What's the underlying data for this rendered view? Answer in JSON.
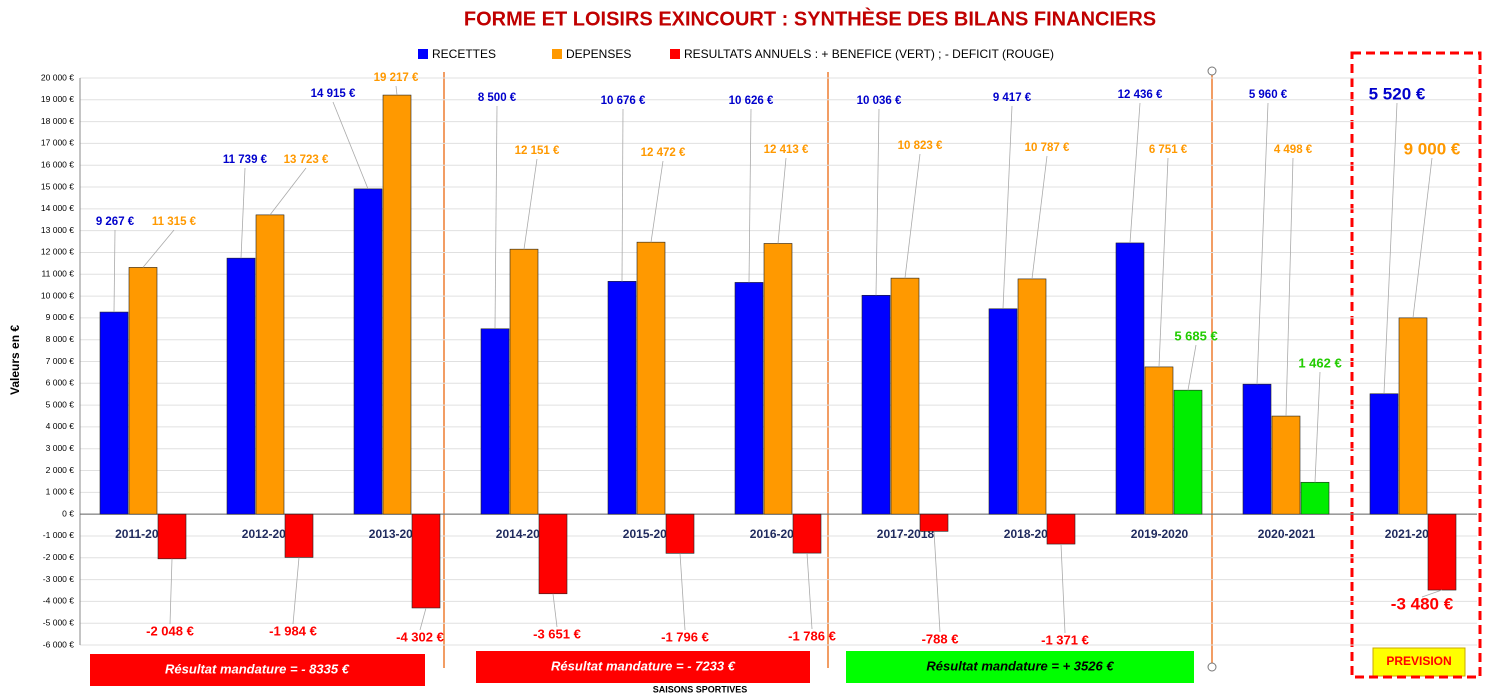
{
  "chart_data": {
    "type": "bar",
    "title": "FORME ET LOISIRS EXINCOURT : SYNTHÈSE DES BILANS FINANCIERS",
    "y_axis_label": "Valeurs en €",
    "x_axis_label": "SAISONS SPORTIVES",
    "categories": [
      "2011-2012",
      "2012-2013",
      "2013-2014",
      "2014-2015",
      "2015-2016",
      "2016-2017",
      "2017-2018",
      "2018-2019",
      "2019-2020",
      "2020-2021",
      "2021-2022"
    ],
    "series": [
      {
        "name": "RECETTES",
        "color": "#0000ff",
        "label_color": "#0000cc",
        "values": [
          9267,
          11739,
          14915,
          8500,
          10676,
          10626,
          10036,
          9417,
          12436,
          5960,
          5520
        ],
        "value_labels": [
          "9 267 €",
          "11 739 €",
          "14 915 €",
          "8 500 €",
          "10 676 €",
          "10 626 €",
          "10 036 €",
          "9 417 €",
          "12 436 €",
          "5 960 €",
          "5 520 €"
        ]
      },
      {
        "name": "DEPENSES",
        "color": "#ff9900",
        "label_color": "#ff9900",
        "values": [
          11315,
          13723,
          19217,
          12151,
          12472,
          12413,
          10823,
          10787,
          6751,
          4498,
          9000
        ],
        "value_labels": [
          "11 315 €",
          "13 723 €",
          "19 217 €",
          "12 151 €",
          "12 472 €",
          "12 413 €",
          "10 823 €",
          "10 787 €",
          "6 751 €",
          "4 498 €",
          "9 000 €"
        ]
      },
      {
        "name": "RESULTATS ANNUELS : + BENEFICE (VERT) ; - DEFICIT (ROUGE)",
        "color": "#ff0000",
        "positive_color": "#00ee00",
        "values": [
          -2048,
          -1984,
          -4302,
          -3651,
          -1796,
          -1786,
          -788,
          -1371,
          5685,
          1462,
          -3480
        ],
        "value_labels": [
          "-2 048 €",
          "-1 984 €",
          "-4 302 €",
          "-3 651 €",
          "-1 796 €",
          "-1 786 €",
          "-788 €",
          "-1 371 €",
          "5 685 €",
          "1 462 €",
          "-3 480 €"
        ]
      }
    ],
    "annotations": [
      "Résultat mandature = - 8335 €",
      "Résultat mandature = - 7233 €",
      "Résultat mandature = + 3526 €",
      "PREVISION"
    ],
    "ylim": [
      -6000,
      20000
    ],
    "yticks": [
      {
        "value": -6000,
        "label": "-6 000 €"
      },
      {
        "value": -5000,
        "label": "-5 000 €"
      },
      {
        "value": -4000,
        "label": "-4 000 €"
      },
      {
        "value": -3000,
        "label": "-3 000 €"
      },
      {
        "value": -2000,
        "label": "-2 000 €"
      },
      {
        "value": -1000,
        "label": "-1 000 €"
      },
      {
        "value": 0,
        "label": "0 €"
      },
      {
        "value": 1000,
        "label": "1 000 €"
      },
      {
        "value": 2000,
        "label": "2 000 €"
      },
      {
        "value": 3000,
        "label": "3 000 €"
      },
      {
        "value": 4000,
        "label": "4 000 €"
      },
      {
        "value": 5000,
        "label": "5 000 €"
      },
      {
        "value": 6000,
        "label": "6 000 €"
      },
      {
        "value": 7000,
        "label": "7 000 €"
      },
      {
        "value": 8000,
        "label": "8 000 €"
      },
      {
        "value": 9000,
        "label": "9 000 €"
      },
      {
        "value": 10000,
        "label": "10 000 €"
      },
      {
        "value": 11000,
        "label": "11 000 €"
      },
      {
        "value": 12000,
        "label": "12 000 €"
      },
      {
        "value": 13000,
        "label": "13 000 €"
      },
      {
        "value": 14000,
        "label": "14 000 €"
      },
      {
        "value": 15000,
        "label": "15 000 €"
      },
      {
        "value": 16000,
        "label": "16 000 €"
      },
      {
        "value": 17000,
        "label": "17 000 €"
      },
      {
        "value": 18000,
        "label": "18 000 €"
      },
      {
        "value": 19000,
        "label": "19 000 €"
      },
      {
        "value": 20000,
        "label": "20 000 €"
      }
    ],
    "grid": true,
    "legend": "top"
  }
}
